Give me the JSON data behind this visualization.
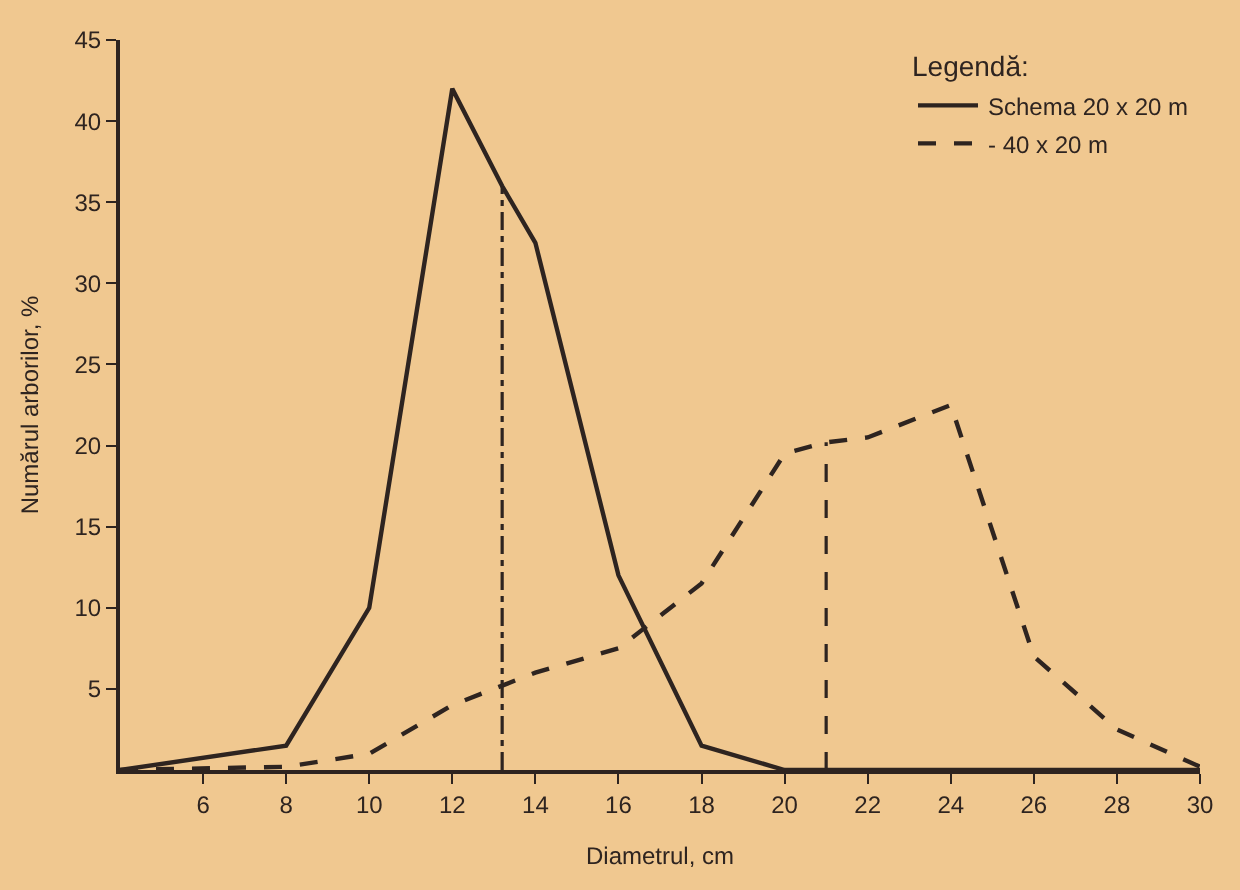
{
  "chart_data": {
    "type": "line",
    "xlabel": "Diametrul, cm",
    "ylabel": "Numărul arborilor, %",
    "legend_title": "Legendă:",
    "legend": "top right",
    "grid": false,
    "marker": "none",
    "xlim": [
      4,
      30
    ],
    "xticks": [
      6,
      8,
      10,
      12,
      14,
      16,
      18,
      20,
      22,
      24,
      26,
      28,
      30
    ],
    "ylim": [
      0,
      45
    ],
    "yticks": [
      5,
      10,
      15,
      20,
      25,
      30,
      35,
      40,
      45
    ],
    "series": [
      {
        "name": "Schema 20 x 20 m",
        "color": "#2e2420",
        "line_style": "solid",
        "x": [
          4,
          8,
          10,
          12,
          13.2,
          14,
          16,
          18,
          20,
          30
        ],
        "values": [
          0,
          1.5,
          10,
          42,
          36,
          32.5,
          12,
          1.5,
          0,
          0
        ]
      },
      {
        "name": "- 40 x 20 m",
        "color": "#2e2420",
        "line_style": "dashed",
        "x": [
          4,
          8,
          10,
          12,
          14,
          16,
          18,
          20,
          21,
          22,
          24,
          26,
          28,
          30
        ],
        "values": [
          0,
          0.2,
          1,
          4,
          6,
          7.5,
          11.5,
          19.5,
          20.2,
          20.5,
          22.5,
          7,
          2.5,
          0.2
        ]
      }
    ],
    "ref_lines": [
      {
        "axis": "x",
        "value": 13.2,
        "line_style": "dashdot",
        "color": "#2e2420"
      },
      {
        "axis": "x",
        "value": 21,
        "line_style": "dashed",
        "color": "#2e2420"
      }
    ]
  }
}
